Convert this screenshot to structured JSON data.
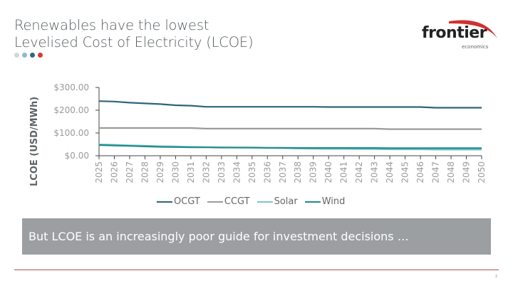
{
  "slide": {
    "title_lines": [
      "Renewables have the lowest",
      "Levelised Cost of Electricity (LCOE)"
    ],
    "dots": [
      "#d3d5d6",
      "#8fb9cf",
      "#2a6a86",
      "#d9392e"
    ],
    "logo": {
      "word": "frontier",
      "sub": "economics",
      "arc_color": "#d32f2f"
    },
    "banner_text": "But LCOE is an increasingly poor guide for investment decisions …",
    "page_number": "2"
  },
  "chart_data": {
    "type": "line",
    "title": "",
    "xlabel": "",
    "ylabel": "LCOE (USD/MWh)",
    "ylim": [
      0,
      300
    ],
    "yticks": [
      0,
      100,
      200,
      300
    ],
    "ytick_labels": [
      "$0.00",
      "$100.00",
      "$200.00",
      "$300.00"
    ],
    "grid": false,
    "legend_position": "bottom",
    "x": [
      "2025",
      "2026",
      "2027",
      "2028",
      "2029",
      "2030",
      "2031",
      "2032",
      "2033",
      "2034",
      "2035",
      "2036",
      "2037",
      "2038",
      "2039",
      "2040",
      "2041",
      "2042",
      "2043",
      "2044",
      "2045",
      "2046",
      "2047",
      "2048",
      "2049",
      "2050"
    ],
    "series": [
      {
        "name": "OCGT",
        "color": "#2f6479",
        "values": [
          240,
          238,
          233,
          230,
          227,
          222,
          220,
          215,
          215,
          215,
          215,
          215,
          215,
          215,
          215,
          214,
          214,
          214,
          214,
          214,
          214,
          214,
          211,
          211,
          211,
          211
        ]
      },
      {
        "name": "CCGT",
        "color": "#9a9a9a",
        "values": [
          122,
          122,
          122,
          122,
          122,
          122,
          122,
          119,
          119,
          119,
          119,
          119,
          119,
          119,
          119,
          119,
          119,
          119,
          119,
          117,
          117,
          117,
          117,
          117,
          117,
          117
        ]
      },
      {
        "name": "Solar",
        "color": "#7fc3cf",
        "values": [
          50,
          48,
          46,
          44,
          42,
          41,
          39,
          38,
          37,
          36,
          35,
          34,
          33,
          32,
          31,
          30,
          30,
          29,
          29,
          28,
          28,
          28,
          27,
          27,
          27,
          27
        ]
      },
      {
        "name": "Wind",
        "color": "#1f8c8a",
        "values": [
          47,
          45,
          43,
          41,
          39,
          38,
          37,
          37,
          36,
          36,
          36,
          35,
          35,
          34,
          34,
          34,
          34,
          34,
          34,
          33,
          33,
          33,
          33,
          33,
          33,
          33
        ]
      }
    ]
  }
}
